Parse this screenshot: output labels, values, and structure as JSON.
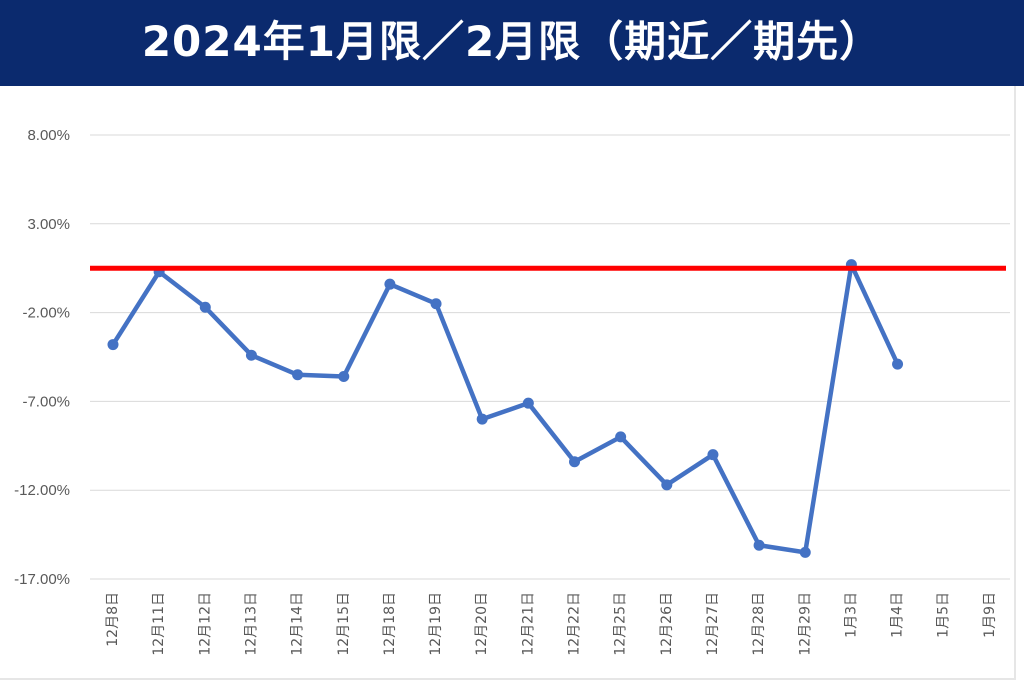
{
  "title": "2024年1月限／2月限（期近／期先）",
  "colors": {
    "title_bg": "#0b2a6e",
    "title_text": "#ffffff",
    "series_line": "#4472c4",
    "reference_line": "#ff0000",
    "grid": "#d9d9d9",
    "tick_text": "#595959"
  },
  "chart_data": {
    "type": "line",
    "title": "2024年1月限／2月限（期近／期先）",
    "xlabel": "",
    "ylabel": "",
    "ylim": [
      -17,
      8
    ],
    "y_ticks": [
      8,
      3,
      -2,
      -7,
      -12,
      -17
    ],
    "y_tick_labels": [
      "8.00%",
      "3.00%",
      "-2.00%",
      "-7.00%",
      "-12.00%",
      "-17.00%"
    ],
    "grid": true,
    "legend": "none",
    "categories": [
      "12月8日",
      "12月11日",
      "12月12日",
      "12月13日",
      "12月14日",
      "12月15日",
      "12月18日",
      "12月19日",
      "12月20日",
      "12月21日",
      "12月22日",
      "12月25日",
      "12月26日",
      "12月27日",
      "12月28日",
      "12月29日",
      "1月3日",
      "1月4日",
      "1月5日",
      "1月9日"
    ],
    "series": [
      {
        "values": [
          -3.8,
          0.3,
          -1.7,
          -4.4,
          -5.5,
          -5.6,
          -0.4,
          -1.5,
          -8.0,
          -7.1,
          -10.4,
          -9.0,
          -11.7,
          -10.0,
          -15.1,
          -15.5,
          0.7,
          -4.9,
          null,
          null
        ]
      }
    ],
    "reference_line": {
      "value": 0.5
    }
  }
}
